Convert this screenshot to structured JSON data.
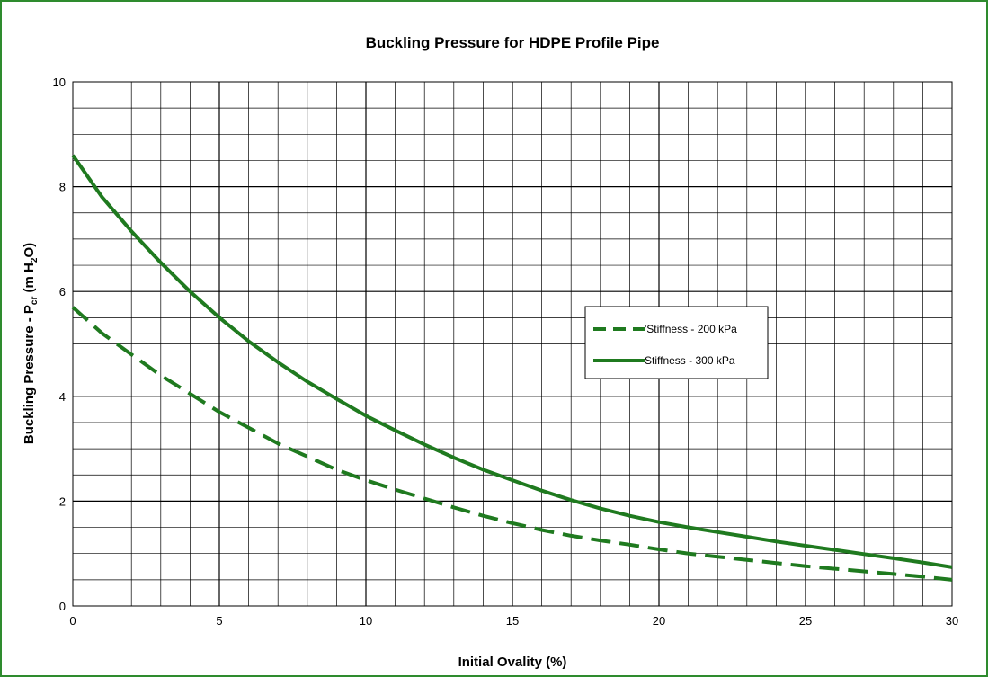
{
  "chart_data": {
    "type": "line",
    "title": "Buckling Pressure for HDPE Profile Pipe",
    "xlabel": "Initial Ovality (%)",
    "ylabel": {
      "prefix": "Buckling Pressure - P",
      "subscript": "cr",
      "middle": " (m H",
      "subscript2": "2",
      "suffix": "O)"
    },
    "xlim": [
      0,
      30
    ],
    "ylim": [
      0,
      10
    ],
    "x_ticks": [
      "0",
      "5",
      "10",
      "15",
      "20",
      "25",
      "30"
    ],
    "y_ticks": [
      "0",
      "2",
      "4",
      "6",
      "8",
      "10"
    ],
    "grid": true,
    "legend_position": "right",
    "colors": {
      "series": "#1f7a1f",
      "frame": "#2e8b2e"
    },
    "series": [
      {
        "name": "'Stiffness - 200 kPa",
        "style": "dashed",
        "x": [
          0,
          1,
          2,
          3,
          4,
          5,
          6,
          7,
          8,
          9,
          10,
          11,
          12,
          13,
          14,
          15,
          16,
          17,
          18,
          19,
          20,
          21,
          22,
          23,
          24,
          25,
          26,
          27,
          28,
          29,
          30
        ],
        "y": [
          5.7,
          5.2,
          4.8,
          4.4,
          4.05,
          3.7,
          3.4,
          3.1,
          2.85,
          2.6,
          2.4,
          2.22,
          2.05,
          1.88,
          1.72,
          1.58,
          1.45,
          1.34,
          1.25,
          1.17,
          1.08,
          1.0,
          0.94,
          0.88,
          0.82,
          0.76,
          0.71,
          0.66,
          0.61,
          0.56,
          0.5
        ]
      },
      {
        "name": "Stiffness - 300 kPa",
        "style": "solid",
        "x": [
          0,
          1,
          2,
          3,
          4,
          5,
          6,
          7,
          8,
          9,
          10,
          11,
          12,
          13,
          14,
          15,
          16,
          17,
          18,
          19,
          20,
          21,
          22,
          23,
          24,
          25,
          26,
          27,
          28,
          29,
          30
        ],
        "y": [
          8.6,
          7.8,
          7.15,
          6.55,
          6.0,
          5.5,
          5.05,
          4.65,
          4.28,
          3.95,
          3.63,
          3.35,
          3.08,
          2.83,
          2.6,
          2.4,
          2.2,
          2.02,
          1.86,
          1.72,
          1.6,
          1.5,
          1.41,
          1.32,
          1.23,
          1.15,
          1.07,
          0.99,
          0.91,
          0.83,
          0.74
        ]
      }
    ]
  }
}
